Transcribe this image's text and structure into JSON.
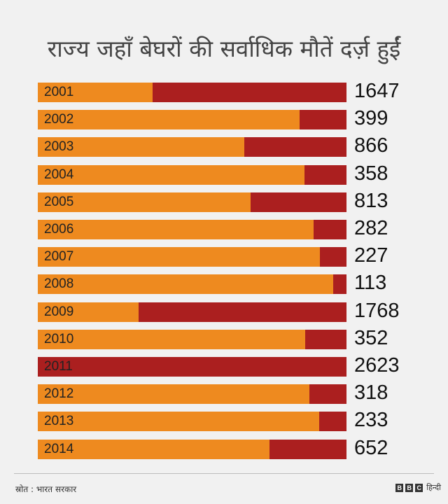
{
  "chart_data": {
    "type": "bar",
    "title": "राज्य जहाँ बेघरों की सर्वाधिक मौतें दर्ज़ हुईं",
    "categories": [
      "2001",
      "2002",
      "2003",
      "2004",
      "2005",
      "2006",
      "2007",
      "2008",
      "2009",
      "2010",
      "2011",
      "2012",
      "2013",
      "2014"
    ],
    "values": [
      1647,
      399,
      866,
      358,
      813,
      282,
      227,
      113,
      1768,
      352,
      2623,
      318,
      233,
      652
    ],
    "ylim": [
      0,
      2623
    ],
    "xlabel": "",
    "ylabel": "",
    "colors": {
      "bar_background": "#ee8a1f",
      "bar_value": "#ab1f1f"
    }
  },
  "footer": {
    "source": "स्रोत : भारत सरकार",
    "brand_letters": [
      "B",
      "B",
      "C"
    ],
    "brand_suffix": "हिन्दी"
  }
}
